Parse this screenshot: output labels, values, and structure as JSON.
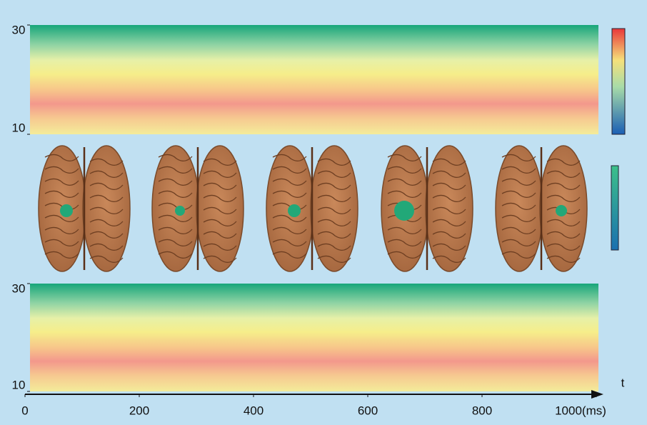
{
  "top_panel": {
    "ylim": [
      10,
      30
    ],
    "yticks": [
      10,
      30
    ]
  },
  "bottom_panel": {
    "ylim": [
      10,
      30
    ],
    "yticks": [
      10,
      30
    ]
  },
  "time_axis": {
    "xlim": [
      0,
      1000
    ],
    "xticks": [
      0,
      200,
      400,
      600,
      800,
      {
        "value": 1000,
        "label": "1000(ms)"
      }
    ],
    "label": "t"
  }
}
